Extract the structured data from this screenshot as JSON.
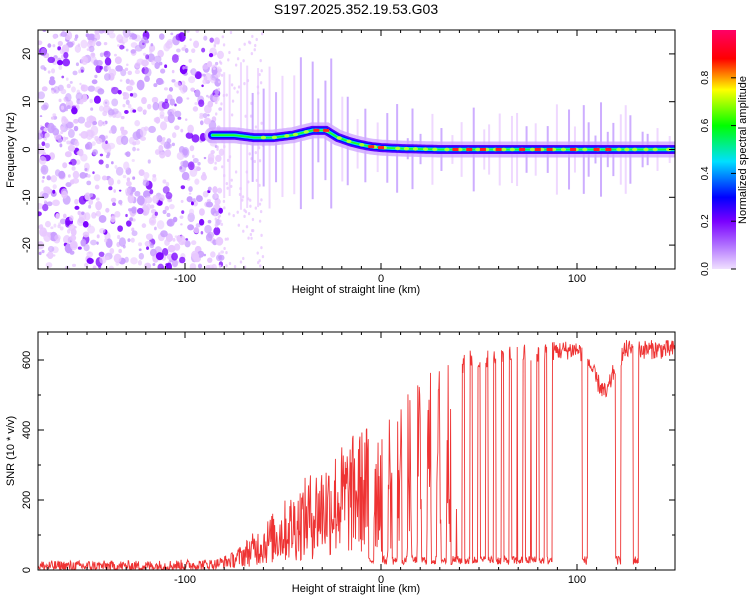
{
  "figure": {
    "title": "S197.2025.352.19.53.G03"
  },
  "chart_data": [
    {
      "type": "heatmap",
      "name": "spectrogram",
      "title": "S197.2025.352.19.53.G03",
      "xlabel": "Height of straight line (km)",
      "ylabel": "Frequency (Hz)",
      "xlim": [
        -175,
        150
      ],
      "ylim": [
        -25,
        25
      ],
      "x_ticks": [
        -100,
        0,
        100
      ],
      "x_tick_labels": [
        "-100",
        "0",
        "100"
      ],
      "y_ticks": [
        -20,
        -10,
        0,
        10,
        20
      ],
      "y_tick_labels": [
        "-20",
        "-10",
        "0",
        "10",
        "20"
      ],
      "colorbar": {
        "label": "Normalized spectral amplitude",
        "range": [
          0,
          1
        ],
        "ticks": [
          0.0,
          0.2,
          0.4,
          0.6,
          0.8
        ],
        "tick_labels": [
          "0.0",
          "0.2",
          "0.4",
          "0.6",
          "0.8"
        ],
        "colormap": [
          "#e8c8ff",
          "#7a00ff",
          "#0000ff",
          "#00e0ff",
          "#00ff00",
          "#ffff00",
          "#ff0000",
          "#ff0066"
        ]
      },
      "noise_region_x": [
        -175,
        -85
      ],
      "signal_ridge": {
        "x": [
          -85,
          -75,
          -65,
          -55,
          -45,
          -35,
          -28,
          -22,
          -15,
          -10,
          -5,
          0,
          10,
          30,
          60,
          100,
          150
        ],
        "freq": [
          3,
          3,
          2.5,
          2.5,
          3,
          4,
          4,
          2.5,
          1.5,
          1,
          0.6,
          0.4,
          0.2,
          0,
          0,
          0,
          0
        ]
      },
      "peak_markers_x": [
        -33,
        -28,
        -5,
        0,
        38,
        45,
        52,
        60,
        72,
        80,
        86,
        98,
        110,
        116
      ]
    },
    {
      "type": "line",
      "name": "snr",
      "xlabel": "Height of straight line (km)",
      "ylabel": "SNR (10 * v/v)",
      "xlim": [
        -175,
        150
      ],
      "ylim": [
        0,
        680
      ],
      "x_ticks": [
        -100,
        0,
        100
      ],
      "x_tick_labels": [
        "-100",
        "0",
        "100"
      ],
      "y_ticks": [
        0,
        200,
        400,
        600
      ],
      "y_tick_labels": [
        "0",
        "200",
        "400",
        "600"
      ],
      "color": "#ee3333",
      "envelope": {
        "x": [
          -175,
          -120,
          -85,
          -75,
          -60,
          -50,
          -40,
          -30,
          -20,
          -10,
          0,
          10,
          20,
          30,
          40,
          42,
          60,
          85,
          100,
          105,
          110,
          115,
          120,
          125,
          150
        ],
        "base": [
          15,
          15,
          20,
          35,
          90,
          130,
          170,
          210,
          240,
          270,
          300,
          330,
          360,
          400,
          450,
          600,
          610,
          625,
          630,
          610,
          540,
          500,
          590,
          630,
          630
        ]
      },
      "dropouts_x": [
        -5,
        2,
        7,
        12,
        17,
        22,
        27,
        32,
        37,
        40,
        44,
        48,
        52,
        56,
        60,
        64,
        68,
        71,
        75,
        78,
        82,
        86,
        104,
        121,
        130
      ]
    }
  ]
}
